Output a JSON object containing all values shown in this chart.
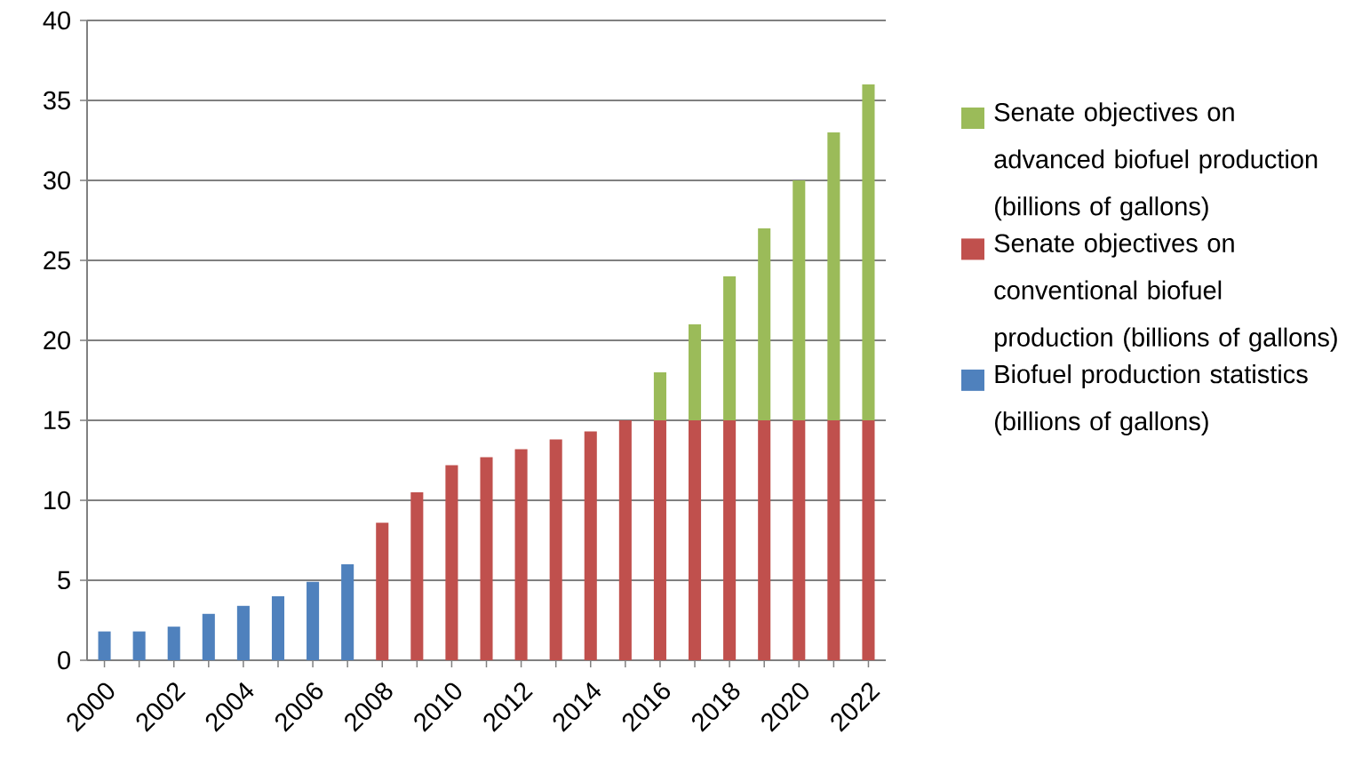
{
  "chart_data": {
    "type": "bar",
    "stacked": true,
    "categories": [
      "2000",
      null,
      "2002",
      null,
      "2004",
      null,
      "2006",
      null,
      "2008",
      null,
      "2010",
      null,
      "2012",
      null,
      "2014",
      null,
      "2016",
      null,
      "2018",
      null,
      "2020",
      null,
      "2022"
    ],
    "series": [
      {
        "name": "Biofuel production statistics (billions of gallons)",
        "color": "#4f81bd",
        "values": [
          1.8,
          1.8,
          2.1,
          2.9,
          3.4,
          4.0,
          4.9,
          6.0,
          null,
          null,
          null,
          null,
          null,
          null,
          null,
          null,
          null,
          null,
          null,
          null,
          null,
          null,
          null
        ]
      },
      {
        "name": "Senate objectives on conventional biofuel production (billions of gallons)",
        "color": "#c0504d",
        "values": [
          null,
          null,
          null,
          null,
          null,
          null,
          null,
          null,
          8.6,
          10.5,
          12.2,
          12.7,
          13.2,
          13.8,
          14.3,
          15,
          15,
          15,
          15,
          15,
          15,
          15,
          15
        ]
      },
      {
        "name": "Senate objectives on advanced biofuel production (billions of gallons)",
        "color": "#9bbb59",
        "values": [
          null,
          null,
          null,
          null,
          null,
          null,
          null,
          null,
          null,
          null,
          null,
          null,
          null,
          null,
          null,
          null,
          3,
          6,
          9,
          12,
          15,
          18,
          21
        ]
      }
    ],
    "ylim": [
      0,
      40
    ],
    "yticks": [
      0,
      5,
      10,
      15,
      20,
      25,
      30,
      35,
      40
    ],
    "grid": "y",
    "legend": "right"
  }
}
